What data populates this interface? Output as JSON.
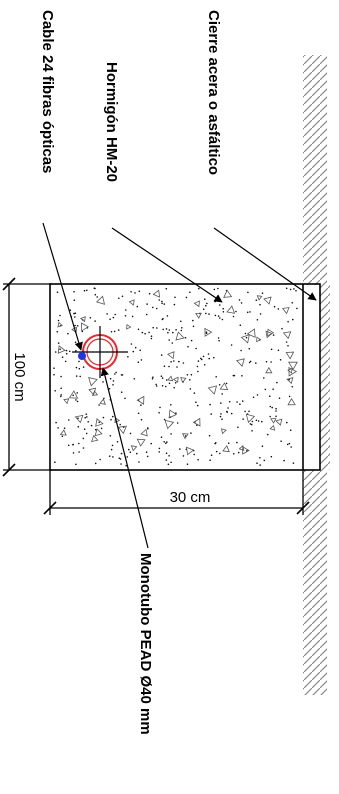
{
  "labels": {
    "cable": "Cable 24 fibras ópticas",
    "concrete": "Hormigón HM-20",
    "surface": "Cierre acera o asfáltico",
    "duct": "Monotubo PEAD Ø40 mm"
  },
  "dimensions": {
    "depth": "100 cm",
    "width": "30 cm"
  },
  "colors": {
    "line": "#000000",
    "duct_ring": "#e8262b",
    "cable_dot": "#1f37e0",
    "hatch": "#8a8a8a"
  }
}
